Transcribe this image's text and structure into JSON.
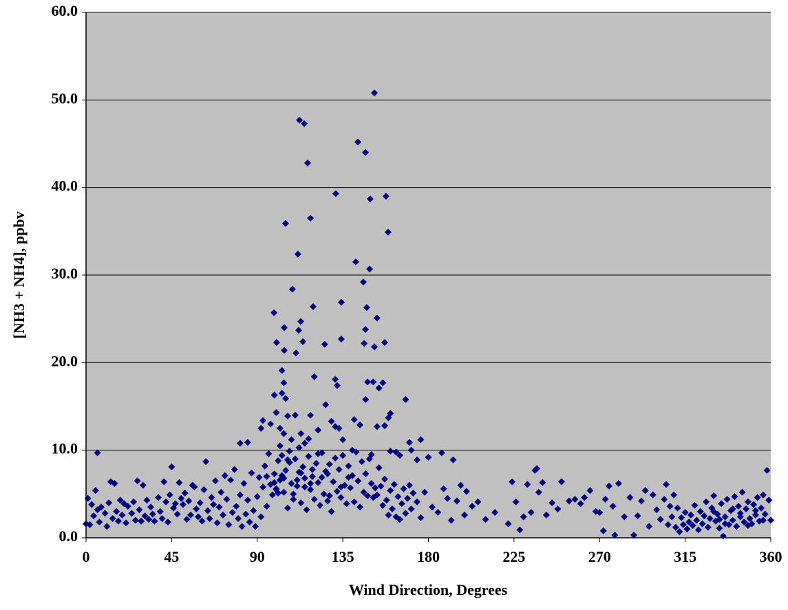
{
  "chart_data": {
    "type": "scatter",
    "x_label": "Wind Direction, Degrees",
    "y_label": "[NH3 + NH4], ppbv",
    "color": "#000080",
    "background": "#c0c0c0",
    "marker": "diamond",
    "grid": true,
    "xlim": [
      0,
      360
    ],
    "xticks": [
      0,
      45,
      90,
      135,
      180,
      225,
      270,
      315,
      360
    ],
    "ylim": [
      0,
      60
    ],
    "yticks": [
      {
        "value": 0,
        "label": "0.0"
      },
      {
        "value": 10,
        "label": "10.0"
      },
      {
        "value": 20,
        "label": "20.0"
      },
      {
        "value": 30,
        "label": "30.0"
      },
      {
        "value": 40,
        "label": "40.0"
      },
      {
        "value": 50,
        "label": "50.0"
      },
      {
        "value": 60,
        "label": "60.0"
      }
    ],
    "x": [
      151.6,
      112.2,
      114.7,
      116.5,
      142.9,
      146.9,
      131.3,
      149.4,
      157.7,
      158.8,
      118.0,
      104.9,
      111.4,
      141.8,
      149.1,
      145.8,
      108.5,
      134.2,
      147.6,
      119.4,
      98.8,
      153.0,
      112.9,
      146.9,
      111.8,
      104.2,
      134.2,
      114.0,
      100.2,
      146.2,
      157.0,
      125.5,
      151.6,
      104.2,
      110.4,
      103,
      104,
      103,
      99,
      105,
      100,
      106,
      110,
      93,
      97,
      102,
      92,
      104,
      113,
      117,
      120,
      126,
      122,
      118,
      131,
      132,
      129,
      131,
      133,
      135,
      141,
      144,
      148,
      151,
      147,
      154,
      156,
      153,
      157,
      159,
      160,
      168,
      160,
      163,
      81,
      85,
      6,
      170,
      176,
      171,
      174,
      187,
      193,
      150,
      140,
      102,
      112,
      115,
      108,
      165,
      0,
      1,
      2,
      3,
      4,
      5,
      6,
      7,
      8,
      10,
      11,
      12,
      13,
      14,
      15,
      16,
      17,
      18,
      19,
      20,
      21,
      22,
      24,
      25,
      26,
      27,
      28,
      29,
      30,
      31,
      32,
      33,
      34,
      35,
      36,
      38,
      39,
      40,
      41,
      42,
      43,
      44,
      45,
      46,
      47,
      48,
      49,
      50,
      51,
      52,
      53,
      54,
      55,
      56,
      57,
      58,
      59,
      60,
      61,
      62,
      63,
      64,
      65,
      66,
      67,
      68,
      69,
      70,
      71,
      72,
      73,
      74,
      75,
      76,
      77,
      78,
      79,
      80,
      81,
      82,
      83,
      84,
      85,
      86,
      87,
      88,
      89,
      90,
      91,
      92,
      93,
      94,
      95,
      96,
      97,
      98,
      99,
      100,
      101,
      102,
      103,
      104,
      105,
      106,
      107,
      108,
      109,
      110,
      111,
      112,
      113,
      114,
      115,
      116,
      117,
      118,
      119,
      120,
      121,
      122,
      123,
      124,
      125,
      126,
      127,
      128,
      129,
      130,
      131,
      132,
      133,
      134,
      135,
      136,
      137,
      138,
      139,
      140,
      141,
      142,
      143,
      144,
      145,
      146,
      147,
      148,
      149,
      150,
      151,
      152,
      153,
      154,
      155,
      156,
      157,
      158,
      159,
      160,
      161,
      162,
      163,
      164,
      165,
      166,
      167,
      168,
      169,
      170,
      171,
      172,
      95,
      99,
      101,
      104,
      107,
      111,
      115,
      119,
      124,
      128,
      100,
      103,
      106,
      109,
      113,
      118,
      122,
      127,
      134,
      138,
      174,
      176,
      178,
      180,
      182,
      185,
      188,
      190,
      192,
      195,
      197,
      199,
      200,
      203,
      206,
      210,
      215,
      222,
      224,
      226,
      228,
      230,
      232,
      234,
      236,
      237,
      238,
      240,
      242,
      245,
      248,
      250,
      254,
      257,
      260,
      262,
      265,
      268,
      270,
      272,
      273,
      275,
      277,
      278,
      280,
      283,
      286,
      288,
      290,
      292,
      294,
      296,
      298,
      300,
      302,
      304,
      305,
      306,
      307,
      308,
      309,
      310,
      311,
      312,
      313,
      314,
      315,
      316,
      317,
      318,
      319,
      320,
      321,
      322,
      323,
      324,
      325,
      326,
      327,
      328,
      329,
      330,
      331,
      332,
      333,
      334,
      335,
      336,
      337,
      338,
      339,
      340,
      341,
      342,
      343,
      344,
      345,
      346,
      347,
      348,
      349,
      350,
      351,
      352,
      353,
      354,
      355,
      356,
      357,
      358,
      359,
      360,
      330,
      333,
      336,
      340,
      344,
      348,
      352,
      356
    ],
    "values": [
      50.8,
      47.7,
      47.3,
      42.8,
      45.2,
      44.0,
      39.3,
      38.7,
      39.0,
      34.9,
      36.5,
      35.9,
      32.4,
      31.5,
      30.7,
      29.2,
      28.4,
      26.9,
      26.3,
      26.4,
      25.7,
      25.1,
      24.7,
      23.8,
      23.7,
      24.0,
      22.7,
      22.4,
      22.3,
      22.2,
      22.3,
      22.1,
      21.8,
      21.4,
      21.1,
      19.1,
      17.7,
      16.5,
      16.3,
      15.9,
      14.3,
      13.9,
      14.0,
      13.4,
      13.0,
      12.5,
      12.5,
      11.9,
      11.9,
      11.3,
      18.4,
      15.2,
      12.3,
      14.0,
      18.1,
      17.4,
      13.3,
      12.7,
      12.5,
      11.2,
      13.5,
      12.9,
      17.8,
      17.8,
      15.8,
      17.1,
      17.7,
      12.7,
      12.8,
      13.7,
      14.2,
      15.8,
      9.9,
      9.8,
      10.8,
      10.9,
      9.7,
      10.9,
      11.2,
      10.0,
      8.9,
      9.7,
      8.9,
      9.5,
      10.0,
      10.5,
      10.3,
      10.8,
      11.2,
      9.4,
      1.6,
      4.5,
      1.5,
      3.8,
      2.5,
      5.4,
      3.2,
      1.8,
      3.5,
      2.8,
      1.3,
      4.0,
      6.4,
      2.2,
      6.2,
      3.0,
      1.9,
      4.3,
      2.6,
      3.9,
      1.7,
      3.6,
      2.8,
      4.1,
      2.0,
      6.5,
      3.2,
      1.9,
      6.0,
      2.5,
      4.3,
      2.1,
      3.5,
      2.7,
      1.9,
      4.6,
      3.0,
      2.2,
      6.4,
      4.1,
      1.8,
      4.9,
      8.1,
      3.4,
      3.9,
      2.7,
      6.3,
      4.5,
      3.8,
      5.1,
      2.1,
      4.2,
      2.6,
      6.0,
      5.8,
      3.3,
      2.4,
      4.0,
      1.9,
      5.5,
      8.7,
      3.1,
      2.2,
      4.6,
      3.8,
      6.5,
      1.7,
      3.5,
      5.2,
      2.6,
      7.1,
      4.4,
      1.5,
      6.6,
      2.9,
      7.8,
      3.6,
      2.2,
      4.9,
      1.3,
      6.2,
      2.7,
      4.3,
      1.8,
      7.4,
      3.1,
      1.3,
      4.7,
      6.9,
      2.4,
      5.8,
      8.2,
      3.6,
      9.6,
      6.1,
      4.9,
      7.3,
      5.5,
      8.8,
      6.6,
      9.4,
      5.2,
      7.7,
      3.4,
      8.6,
      6.2,
      4.4,
      9.0,
      5.9,
      7.5,
      4.0,
      8.1,
      6.8,
      3.2,
      9.3,
      5.5,
      7.0,
      4.4,
      8.5,
      6.3,
      3.7,
      9.7,
      5.0,
      7.6,
      4.2,
      8.4,
      3.0,
      6.4,
      9.1,
      5.3,
      7.8,
      4.6,
      9.4,
      6.0,
      3.9,
      8.2,
      5.7,
      7.1,
      4.1,
      9.8,
      6.5,
      3.5,
      8.7,
      5.2,
      7.3,
      4.8,
      9.0,
      6.2,
      4.6,
      5.7,
      4.9,
      8.0,
      5.9,
      3.7,
      6.7,
      4.3,
      2.6,
      5.4,
      3.3,
      6.1,
      2.4,
      4.7,
      2.1,
      3.9,
      5.6,
      2.8,
      4.5,
      6.0,
      3.3,
      5.1,
      7.0,
      6.3,
      5.1,
      6.8,
      9.9,
      6.6,
      5.8,
      7.8,
      6.9,
      4.8,
      5.6,
      7.1,
      8.9,
      5.0,
      7.4,
      6.2,
      9.6,
      7.3,
      5.8,
      6.9,
      4.1,
      2.3,
      5.2,
      9.2,
      3.5,
      2.9,
      5.6,
      4.5,
      2.0,
      4.2,
      6.0,
      2.6,
      5.3,
      3.6,
      4.1,
      2.1,
      2.9,
      1.6,
      6.4,
      4.1,
      0.9,
      2.4,
      6.1,
      2.9,
      7.7,
      7.9,
      5.2,
      6.3,
      2.6,
      4.0,
      3.3,
      6.4,
      4.2,
      4.4,
      3.9,
      4.6,
      5.4,
      3.0,
      2.9,
      0.8,
      4.4,
      5.9,
      3.6,
      0.3,
      6.2,
      2.4,
      4.6,
      0.3,
      2.5,
      4.2,
      5.4,
      1.3,
      4.9,
      3.2,
      2.1,
      4.4,
      6.1,
      1.5,
      3.6,
      2.4,
      4.9,
      1.2,
      3.4,
      0.7,
      2.3,
      1.5,
      2.9,
      1.0,
      1.8,
      2.6,
      1.4,
      3.7,
      2.0,
      0.9,
      3.0,
      1.6,
      2.5,
      4.1,
      1.2,
      2.2,
      3.4,
      4.8,
      1.9,
      2.7,
      1.1,
      3.9,
      0.2,
      2.4,
      4.4,
      1.5,
      3.1,
      2.0,
      4.7,
      1.3,
      3.6,
      2.8,
      5.2,
      1.8,
      3.3,
      4.1,
      2.2,
      1.6,
      3.8,
      2.6,
      4.6,
      1.9,
      3.4,
      4.9,
      2.7,
      7.7,
      4.3,
      2.0,
      3.0,
      2.1,
      1.6,
      3.3,
      2.4,
      1.4,
      3.1,
      2.0
    ]
  }
}
